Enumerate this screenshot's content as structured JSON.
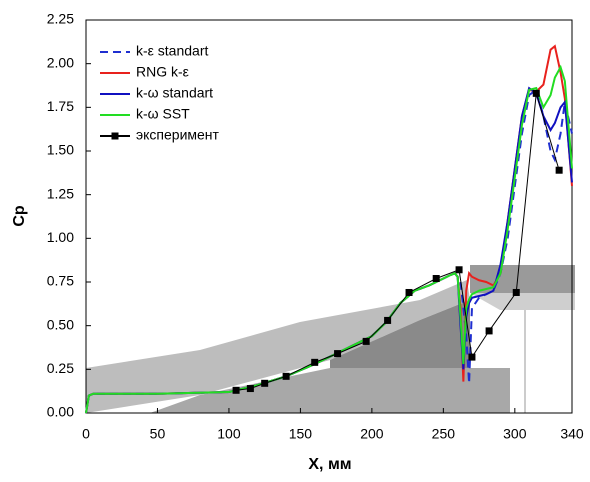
{
  "chart_data": {
    "type": "line",
    "xlabel": "X, мм",
    "ylabel": "Cp",
    "xlim": [
      0,
      340
    ],
    "ylim": [
      0,
      2.25
    ],
    "xticks": [
      0,
      50,
      100,
      150,
      200,
      250,
      300,
      340
    ],
    "yticks": [
      {
        "value": 0,
        "label": "0.00"
      },
      {
        "value": 0.25,
        "label": "0.25"
      },
      {
        "value": 0.5,
        "label": "0.50"
      },
      {
        "value": 0.75,
        "label": "0.75"
      },
      {
        "value": 1,
        "label": "1.00"
      },
      {
        "value": 1.25,
        "label": "1.25"
      },
      {
        "value": 1.5,
        "label": "1.50"
      },
      {
        "value": 1.75,
        "label": "1.75"
      },
      {
        "value": 2,
        "label": "2.00"
      },
      {
        "value": 2.25,
        "label": "2.25"
      }
    ],
    "legend": "upper-left",
    "x": [
      0,
      2,
      5,
      20,
      50,
      100,
      120,
      140,
      160,
      180,
      200,
      210,
      220,
      230,
      240,
      250,
      255,
      258,
      260,
      262,
      264,
      266,
      268,
      270,
      275,
      280,
      285,
      290,
      295,
      300,
      305,
      310,
      315,
      320,
      325,
      328,
      332,
      335,
      340
    ],
    "series": [
      {
        "name": "k-ε  standart",
        "color": "#1f2fd0",
        "dashed": true,
        "values": [
          0,
          0.1,
          0.11,
          0.11,
          0.11,
          0.12,
          0.16,
          0.21,
          0.28,
          0.36,
          0.44,
          0.52,
          0.63,
          0.7,
          0.73,
          0.77,
          0.79,
          0.8,
          0.78,
          0.75,
          0.6,
          0.45,
          0.17,
          0.6,
          0.66,
          0.68,
          0.7,
          0.8,
          1.0,
          1.3,
          1.6,
          1.82,
          1.85,
          1.7,
          1.5,
          1.45,
          1.6,
          1.78,
          1.6
        ]
      },
      {
        "name": "RNG k-ε",
        "color": "#e8211d",
        "values": [
          0,
          0.1,
          0.11,
          0.11,
          0.11,
          0.12,
          0.16,
          0.21,
          0.28,
          0.36,
          0.44,
          0.52,
          0.63,
          0.7,
          0.73,
          0.77,
          0.79,
          0.8,
          0.78,
          0.6,
          0.18,
          0.7,
          0.8,
          0.78,
          0.76,
          0.75,
          0.73,
          0.8,
          1.1,
          1.4,
          1.7,
          1.85,
          1.84,
          1.88,
          2.08,
          2.1,
          1.95,
          1.8,
          1.3
        ]
      },
      {
        "name": "k-ω  standart",
        "color": "#1010c0",
        "values": [
          0,
          0.1,
          0.11,
          0.11,
          0.11,
          0.12,
          0.16,
          0.21,
          0.28,
          0.36,
          0.44,
          0.52,
          0.63,
          0.7,
          0.73,
          0.77,
          0.79,
          0.8,
          0.78,
          0.5,
          0.25,
          0.55,
          0.63,
          0.66,
          0.67,
          0.68,
          0.7,
          0.85,
          1.1,
          1.4,
          1.7,
          1.86,
          1.83,
          1.7,
          1.62,
          1.66,
          1.75,
          1.78,
          1.32
        ]
      },
      {
        "name": "k-ω  SST",
        "color": "#22dd22",
        "values": [
          0,
          0.1,
          0.11,
          0.11,
          0.11,
          0.12,
          0.16,
          0.21,
          0.28,
          0.36,
          0.44,
          0.52,
          0.63,
          0.7,
          0.73,
          0.77,
          0.79,
          0.8,
          0.78,
          0.55,
          0.28,
          0.6,
          0.65,
          0.68,
          0.7,
          0.71,
          0.72,
          0.8,
          1.05,
          1.35,
          1.65,
          1.85,
          1.86,
          1.75,
          1.82,
          1.92,
          1.98,
          1.9,
          1.4
        ]
      },
      {
        "name": "эксперимент",
        "color": "#000000",
        "marker": "square",
        "x": [
          105,
          115,
          125,
          140,
          160,
          176,
          196,
          211,
          226,
          245,
          261,
          270,
          282,
          301,
          315,
          331
        ],
        "values": [
          0.13,
          0.14,
          0.17,
          0.21,
          0.29,
          0.34,
          0.41,
          0.53,
          0.69,
          0.77,
          0.82,
          0.32,
          0.47,
          0.69,
          1.83,
          1.39
        ]
      }
    ]
  }
}
